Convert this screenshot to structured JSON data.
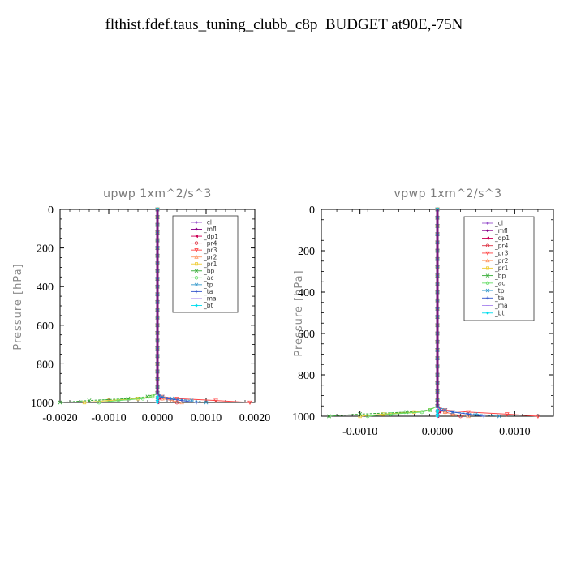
{
  "page_title": "flthist.fdef.taus_tuning_clubb_c8p  BUDGET at90E,-75N",
  "legend_entries": [
    "_cl",
    "_mfl",
    "_dp1",
    "_pr4",
    "_pr3",
    "_pr2",
    "_pr1",
    "_bp",
    "_ac",
    "_tp",
    "_ta",
    "_ma",
    "_bt"
  ],
  "legend_colors": [
    "#9955cc",
    "#880088",
    "#cc0055",
    "#dd3344",
    "#ff4444",
    "#ff9966",
    "#eecc33",
    "#33aa33",
    "#66dd66",
    "#3399cc",
    "#3355cc",
    "#aa88ee",
    "#00ddee"
  ],
  "legend_markers": [
    "diamond",
    "diamond",
    "tri-left",
    "circle",
    "tri-down",
    "tri-up",
    "square",
    "x",
    "circle",
    "x",
    "plus",
    "dash",
    "diamond"
  ],
  "chart_data": [
    {
      "type": "line",
      "title": "upwp   1xm^2/s^3",
      "xlabel": "",
      "ylabel": "Pressure [hPa]",
      "xlim": [
        -0.002,
        0.002
      ],
      "ylim": [
        1000,
        0
      ],
      "x_ticks": [
        -0.002,
        -0.001,
        0.0,
        0.001,
        0.002
      ],
      "x_tick_labels": [
        "-0.0020",
        "-0.0010",
        "0.0000",
        "0.0010",
        "0.0020"
      ],
      "y_ticks": [
        0,
        200,
        400,
        600,
        800,
        1000
      ],
      "y_tick_labels": [
        "0",
        "200",
        "400",
        "600",
        "800",
        "1000"
      ],
      "pressure_levels": [
        0,
        40,
        80,
        120,
        160,
        200,
        240,
        280,
        320,
        360,
        400,
        440,
        480,
        520,
        560,
        600,
        640,
        680,
        720,
        760,
        800,
        840,
        880,
        920,
        950,
        970,
        980,
        990,
        995,
        1000
      ],
      "series": [
        {
          "name": "_cl",
          "x_near_surface": [
            0.0,
            0.0,
            0.0,
            0.0,
            0.0
          ]
        },
        {
          "name": "_mfl",
          "x_near_surface": [
            0.0,
            0.0,
            0.0,
            0.0,
            0.0
          ]
        },
        {
          "name": "_dp1",
          "x_near_surface": [
            0.0,
            0.0,
            5e-05,
            0.0,
            0.0
          ]
        },
        {
          "name": "_pr4",
          "x_near_surface": [
            0.0,
            5e-05,
            0.0001,
            0.0003,
            0.0004
          ]
        },
        {
          "name": "_pr3",
          "x_near_surface": [
            0.0,
            0.0001,
            0.0004,
            0.0012,
            0.0019
          ]
        },
        {
          "name": "_pr2",
          "x_near_surface": [
            0.0,
            0.0,
            0.0001,
            0.0003,
            0.0005
          ]
        },
        {
          "name": "_pr1",
          "x_near_surface": [
            0.0,
            -0.0001,
            -0.0004,
            -0.001,
            -0.0015
          ]
        },
        {
          "name": "_bp",
          "x_near_surface": [
            0.0,
            -0.0002,
            -0.0006,
            -0.0014,
            -0.002
          ]
        },
        {
          "name": "_ac",
          "x_near_surface": [
            0.0,
            -0.0001,
            -0.0003,
            -0.0008,
            -0.0012
          ]
        },
        {
          "name": "_tp",
          "x_near_surface": [
            0.0,
            0.0001,
            0.0003,
            0.0007,
            0.001
          ]
        },
        {
          "name": "_ta",
          "x_near_surface": [
            0.0,
            5e-05,
            0.0002,
            0.0005,
            0.0008
          ]
        },
        {
          "name": "_ma",
          "x_near_surface": [
            0.0,
            0.0,
            0.0,
            0.0,
            0.0
          ]
        },
        {
          "name": "_bt",
          "x_near_surface": [
            0.0,
            0.0,
            0.0,
            0.0,
            0.0
          ]
        }
      ],
      "near_surface_levels": [
        950,
        970,
        980,
        990,
        1000
      ],
      "legend": "top-right",
      "grid": false
    },
    {
      "type": "line",
      "title": "vpwp   1xm^2/s^3",
      "xlabel": "",
      "ylabel": "Pressure [hPa]",
      "xlim": [
        -0.0015,
        0.0015
      ],
      "ylim": [
        1000,
        0
      ],
      "x_ticks": [
        -0.001,
        0.0,
        0.001
      ],
      "x_tick_labels": [
        "-0.0010",
        "0.0000",
        "0.0010"
      ],
      "y_ticks": [
        0,
        200,
        400,
        600,
        800,
        1000
      ],
      "y_tick_labels": [
        "0",
        "200",
        "400",
        "600",
        "800",
        "1000"
      ],
      "pressure_levels": [
        0,
        40,
        80,
        120,
        160,
        200,
        240,
        280,
        320,
        360,
        400,
        440,
        480,
        520,
        560,
        600,
        640,
        680,
        720,
        760,
        800,
        840,
        880,
        920,
        950,
        970,
        980,
        990,
        995,
        1000
      ],
      "series": [
        {
          "name": "_cl",
          "x_near_surface": [
            0.0,
            0.0,
            0.0,
            0.0,
            0.0
          ]
        },
        {
          "name": "_mfl",
          "x_near_surface": [
            0.0,
            0.0,
            0.0,
            0.0,
            0.0
          ]
        },
        {
          "name": "_dp1",
          "x_near_surface": [
            0.0,
            0.0,
            3e-05,
            0.0,
            0.0
          ]
        },
        {
          "name": "_pr4",
          "x_near_surface": [
            0.0,
            5e-05,
            0.0001,
            0.0002,
            0.0003
          ]
        },
        {
          "name": "_pr3",
          "x_near_surface": [
            0.0,
            0.0001,
            0.0004,
            0.0009,
            0.0013
          ]
        },
        {
          "name": "_pr2",
          "x_near_surface": [
            0.0,
            0.0,
            0.0001,
            0.0002,
            0.0004
          ]
        },
        {
          "name": "_pr1",
          "x_near_surface": [
            0.0,
            -0.0001,
            -0.0003,
            -0.0007,
            -0.001
          ]
        },
        {
          "name": "_bp",
          "x_near_surface": [
            0.0,
            -0.0001,
            -0.0004,
            -0.001,
            -0.0014
          ]
        },
        {
          "name": "_ac",
          "x_near_surface": [
            0.0,
            -0.0001,
            -0.0002,
            -0.0006,
            -0.0009
          ]
        },
        {
          "name": "_tp",
          "x_near_surface": [
            0.0,
            0.0001,
            0.0002,
            0.0005,
            0.0008
          ]
        },
        {
          "name": "_ta",
          "x_near_surface": [
            0.0,
            5e-05,
            0.0002,
            0.0004,
            0.0006
          ]
        },
        {
          "name": "_ma",
          "x_near_surface": [
            0.0,
            0.0,
            0.0,
            0.0,
            0.0
          ]
        },
        {
          "name": "_bt",
          "x_near_surface": [
            0.0,
            0.0,
            0.0,
            0.0,
            0.0
          ]
        }
      ],
      "near_surface_levels": [
        950,
        970,
        980,
        990,
        1000
      ],
      "legend": "top-right",
      "grid": false
    }
  ]
}
